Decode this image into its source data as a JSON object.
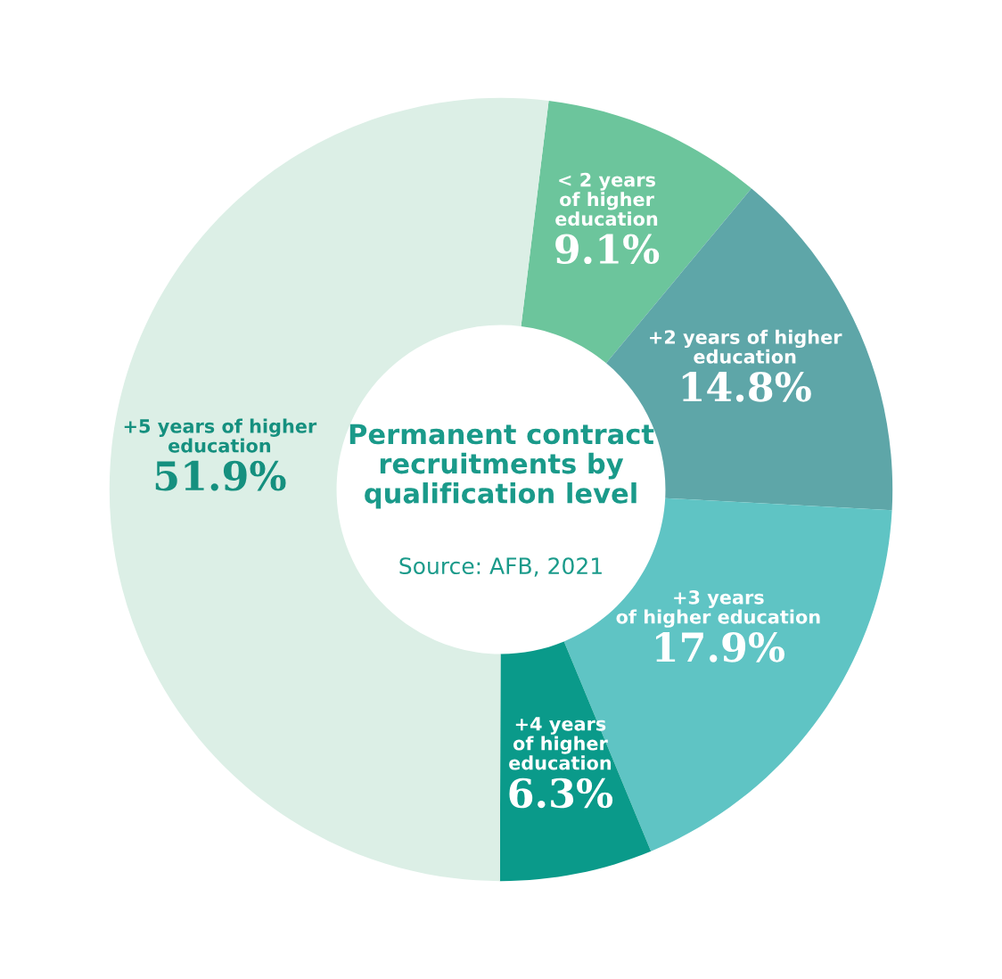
{
  "chart_data": {
    "type": "donut",
    "title": "Permanent contract\nrecruitments by\nqualification level",
    "annotations": [
      "Source: AFB, 2021"
    ],
    "categories": [
      "< 2 years\nof higher\neducation",
      "+2 years of higher\neducation",
      "+3 years\nof higher education",
      "+4 years\nof higher\neducation",
      "+5 years of higher\neducation"
    ],
    "values": [
      9.1,
      14.8,
      17.9,
      6.3,
      51.9
    ],
    "value_labels": [
      "9.1%",
      "14.8%",
      "17.9%",
      "6.3%",
      "51.9%"
    ],
    "colors": [
      "#6cc59c",
      "#5ea6a8",
      "#5fc4c4",
      "#0a9a8a",
      "#dcefe6"
    ]
  }
}
